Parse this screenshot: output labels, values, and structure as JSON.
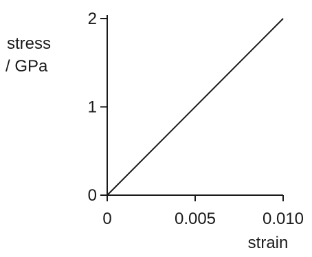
{
  "chart_data": {
    "type": "line",
    "title": "",
    "ylabel_lines": [
      "stress",
      "/ GPa"
    ],
    "xlabel": "strain",
    "xlim": [
      0,
      0.01
    ],
    "ylim": [
      0,
      2
    ],
    "x_ticks": [
      {
        "value": 0,
        "label": "0"
      },
      {
        "value": 0.005,
        "label": "0.005"
      },
      {
        "value": 0.01,
        "label": "0.010"
      }
    ],
    "y_ticks": [
      {
        "value": 0,
        "label": "0"
      },
      {
        "value": 1,
        "label": "1"
      },
      {
        "value": 2,
        "label": "2"
      }
    ],
    "grid": false,
    "series": [
      {
        "x": [
          0,
          0.01
        ],
        "y": [
          0,
          2
        ]
      }
    ],
    "line_color": "#1a1a1a"
  }
}
